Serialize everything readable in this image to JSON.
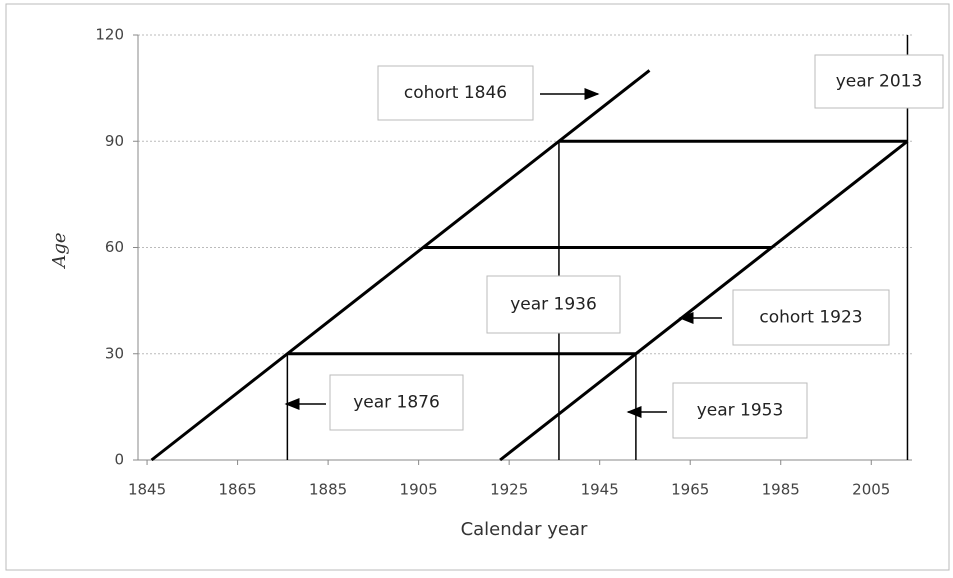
{
  "chart_data": {
    "type": "line",
    "x_label": "Calendar year",
    "y_label": "Age",
    "xlim": [
      1843,
      2014
    ],
    "ylim": [
      0,
      120
    ],
    "xticks": [
      1845,
      1865,
      1885,
      1905,
      1925,
      1945,
      1965,
      1985,
      2005
    ],
    "yticks": [
      0,
      30,
      60,
      90,
      120
    ],
    "grid": true,
    "color": "#000000",
    "segments": [
      {
        "x": [
          1846,
          1956
        ],
        "values": [
          0,
          110
        ]
      },
      {
        "x": [
          1923,
          2013
        ],
        "values": [
          0,
          90
        ]
      },
      {
        "x": [
          1876,
          1953
        ],
        "values": [
          30,
          30
        ]
      },
      {
        "x": [
          1906,
          1983
        ],
        "values": [
          60,
          60
        ]
      },
      {
        "x": [
          1936,
          2013
        ],
        "values": [
          90,
          90
        ]
      },
      {
        "x": [
          1876,
          1876
        ],
        "values": [
          0,
          30
        ]
      },
      {
        "x": [
          1936,
          1936
        ],
        "values": [
          0,
          90
        ]
      },
      {
        "x": [
          1953,
          1953
        ],
        "values": [
          0,
          30
        ]
      },
      {
        "x": [
          2013,
          2013
        ],
        "values": [
          0,
          120
        ]
      }
    ],
    "annotations": [
      "cohort 1846",
      "year 2013",
      "year 1936",
      "cohort 1923",
      "year 1876",
      "year 1953"
    ]
  }
}
